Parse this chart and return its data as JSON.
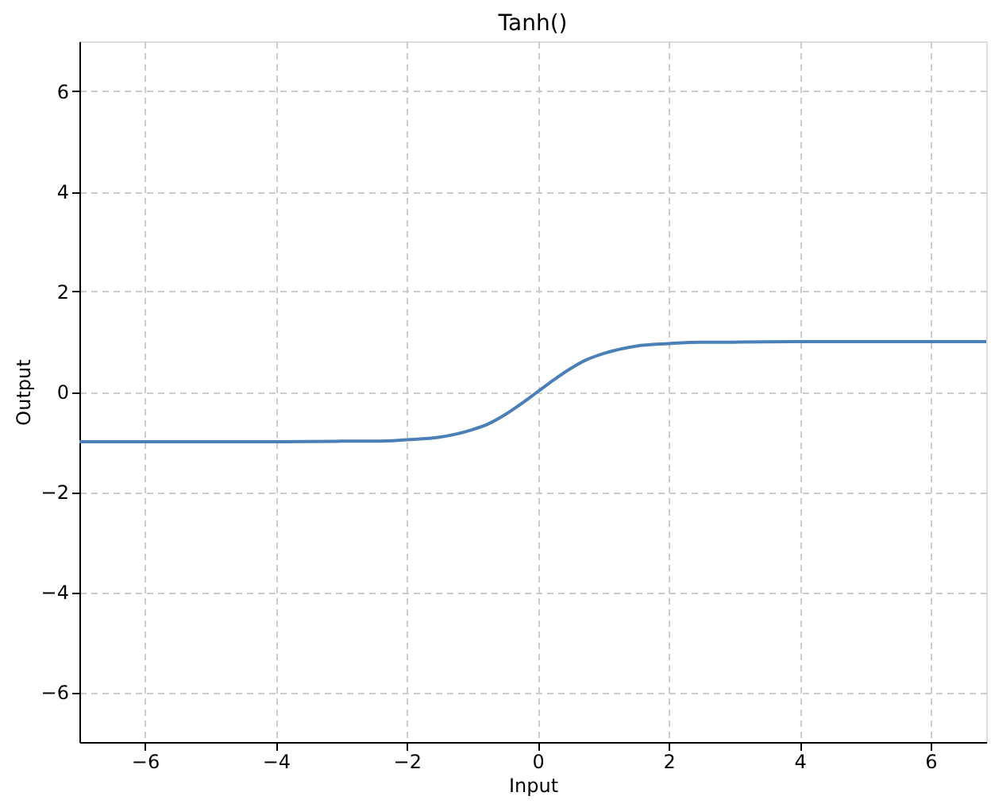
{
  "chart_data": {
    "type": "line",
    "title": "Tanh()",
    "xlabel": "Input",
    "ylabel": "Output",
    "x": [
      -7,
      -5,
      -4,
      -3,
      -2.5,
      -2,
      -1.5,
      -1,
      -0.75,
      -0.5,
      -0.25,
      0,
      0.25,
      0.5,
      0.75,
      1,
      1.5,
      2,
      2.5,
      3,
      4,
      5,
      6.85
    ],
    "series": [
      {
        "color": "#4a7fb8",
        "values": [
          -1,
          -1,
          -1,
          -0.99,
          -0.99,
          -0.96,
          -0.91,
          -0.76,
          -0.64,
          -0.46,
          -0.24,
          0,
          0.24,
          0.46,
          0.64,
          0.76,
          0.91,
          0.96,
          0.99,
          0.99,
          1,
          1,
          1
        ]
      }
    ],
    "xlim": [
      -7,
      6.85
    ],
    "ylim": [
      -7,
      7
    ],
    "xticks": [
      {
        "value": -6,
        "label": "−6"
      },
      {
        "value": -4,
        "label": "−4"
      },
      {
        "value": -2,
        "label": "−2"
      },
      0,
      2,
      4,
      6
    ],
    "yticks": [
      {
        "value": -6,
        "label": "−6"
      },
      {
        "value": -4,
        "label": "−4"
      },
      {
        "value": -2,
        "label": "−2"
      },
      0,
      2,
      4,
      6
    ],
    "grid": true,
    "line_style": "solid",
    "marker": "none",
    "legend": false
  }
}
